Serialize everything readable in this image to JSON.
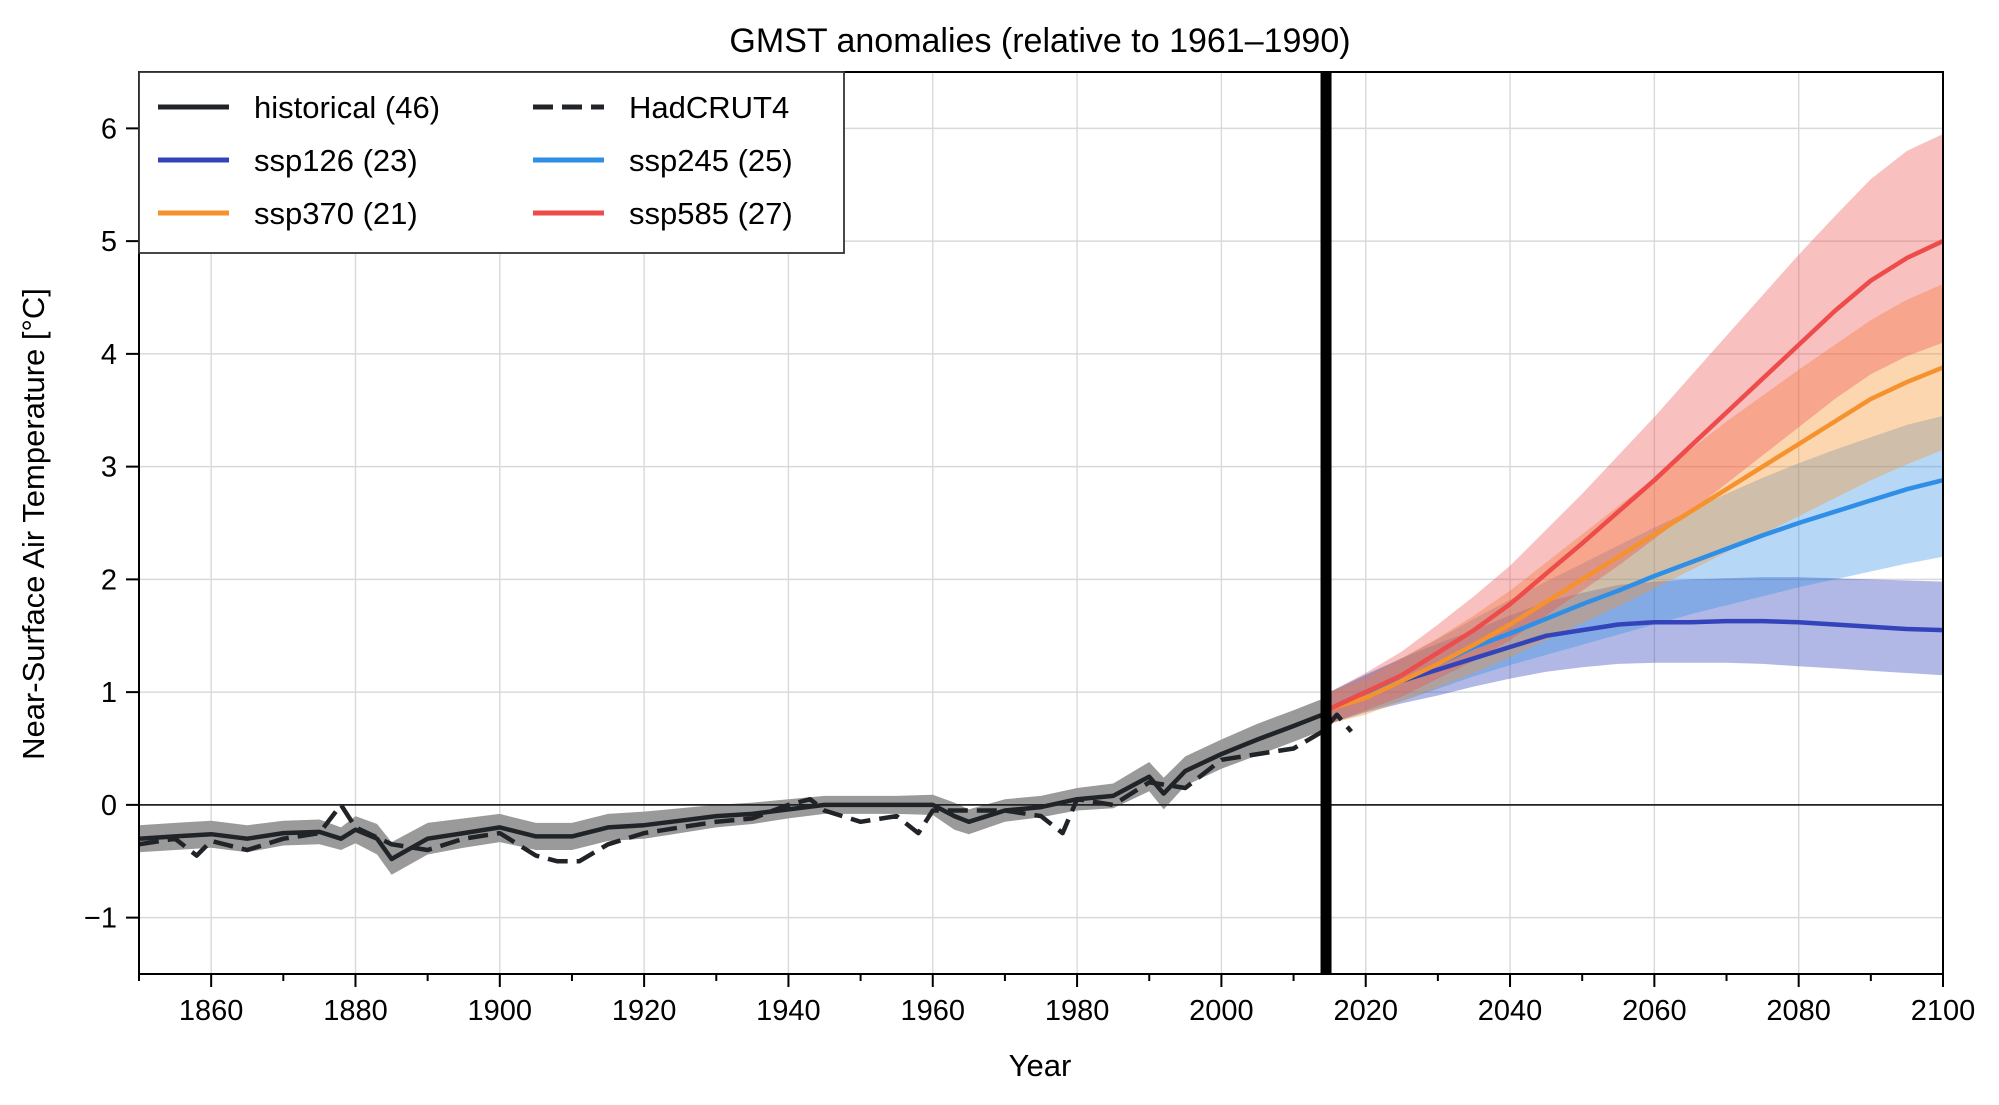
{
  "chart_data": {
    "type": "line",
    "title": "GMST anomalies (relative to 1961–1990)",
    "xlabel": "Year",
    "ylabel": "Near-Surface Air Temperature [°C]",
    "xlim": [
      1850,
      2100
    ],
    "ylim": [
      -1.5,
      6.5
    ],
    "xticks": [
      1860,
      1880,
      1900,
      1920,
      1940,
      1960,
      1980,
      2000,
      2020,
      2040,
      2060,
      2080,
      2100
    ],
    "xtick_labels": [
      "1860",
      "1880",
      "1900",
      "1920",
      "1940",
      "1960",
      "1980",
      "2000",
      "2020",
      "2040",
      "2060",
      "2080",
      "2100"
    ],
    "yticks": [
      -1,
      0,
      1,
      2,
      3,
      4,
      5,
      6
    ],
    "ytick_labels": [
      "−1",
      "0",
      "1",
      "2",
      "3",
      "4",
      "5",
      "6"
    ],
    "grid": true,
    "zero_line": true,
    "divider_year": 2014.5,
    "legend_position": "top-left",
    "legend_columns": 2,
    "series": [
      {
        "key": "historical",
        "name": "historical (46)",
        "color": "#202428",
        "band_color": "#9a9a9a",
        "dash": "solid",
        "x": [
          1850,
          1855,
          1860,
          1865,
          1870,
          1875,
          1878,
          1880,
          1883,
          1885,
          1890,
          1895,
          1900,
          1905,
          1910,
          1915,
          1920,
          1925,
          1930,
          1935,
          1940,
          1945,
          1950,
          1955,
          1960,
          1963,
          1965,
          1970,
          1975,
          1980,
          1985,
          1990,
          1992,
          1995,
          2000,
          2005,
          2010,
          2014
        ],
        "values": [
          -0.3,
          -0.28,
          -0.26,
          -0.3,
          -0.25,
          -0.24,
          -0.3,
          -0.22,
          -0.3,
          -0.48,
          -0.3,
          -0.25,
          -0.2,
          -0.28,
          -0.28,
          -0.2,
          -0.18,
          -0.14,
          -0.1,
          -0.08,
          -0.04,
          0.0,
          0.0,
          0.0,
          0.0,
          -0.1,
          -0.15,
          -0.05,
          -0.02,
          0.05,
          0.08,
          0.25,
          0.1,
          0.3,
          0.45,
          0.58,
          0.7,
          0.8
        ],
        "lower": [
          -0.42,
          -0.4,
          -0.38,
          -0.42,
          -0.36,
          -0.35,
          -0.4,
          -0.34,
          -0.44,
          -0.62,
          -0.44,
          -0.38,
          -0.33,
          -0.4,
          -0.4,
          -0.32,
          -0.3,
          -0.25,
          -0.2,
          -0.17,
          -0.12,
          -0.08,
          -0.08,
          -0.08,
          -0.09,
          -0.22,
          -0.26,
          -0.15,
          -0.11,
          -0.05,
          -0.03,
          0.12,
          -0.04,
          0.17,
          0.32,
          0.44,
          0.56,
          0.66
        ],
        "upper": [
          -0.18,
          -0.16,
          -0.14,
          -0.18,
          -0.14,
          -0.13,
          -0.2,
          -0.1,
          -0.17,
          -0.33,
          -0.16,
          -0.12,
          -0.08,
          -0.16,
          -0.16,
          -0.08,
          -0.06,
          -0.03,
          0.0,
          0.02,
          0.05,
          0.08,
          0.08,
          0.08,
          0.09,
          0.02,
          -0.04,
          0.05,
          0.08,
          0.15,
          0.19,
          0.38,
          0.24,
          0.43,
          0.58,
          0.72,
          0.84,
          0.94
        ]
      },
      {
        "key": "hadcrut4",
        "name": "HadCRUT4",
        "color": "#202428",
        "dash": "dashed",
        "x": [
          1850,
          1855,
          1858,
          1860,
          1865,
          1870,
          1875,
          1878,
          1880,
          1885,
          1890,
          1895,
          1900,
          1905,
          1908,
          1911,
          1915,
          1920,
          1925,
          1930,
          1935,
          1940,
          1943,
          1945,
          1950,
          1955,
          1958,
          1960,
          1965,
          1970,
          1975,
          1978,
          1980,
          1985,
          1990,
          1995,
          2000,
          2005,
          2010,
          2014,
          2016,
          2018
        ],
        "values": [
          -0.35,
          -0.3,
          -0.45,
          -0.32,
          -0.4,
          -0.3,
          -0.25,
          0.0,
          -0.2,
          -0.35,
          -0.4,
          -0.3,
          -0.25,
          -0.45,
          -0.5,
          -0.5,
          -0.35,
          -0.25,
          -0.2,
          -0.15,
          -0.12,
          0.0,
          0.05,
          -0.05,
          -0.15,
          -0.1,
          -0.25,
          -0.05,
          -0.05,
          -0.05,
          -0.1,
          -0.25,
          0.05,
          0.0,
          0.2,
          0.15,
          0.4,
          0.45,
          0.5,
          0.65,
          0.8,
          0.65
        ]
      },
      {
        "key": "ssp126",
        "name": "ssp126 (23)",
        "color": "#3344bb",
        "band_color": "rgba(51,68,187,0.38)",
        "dash": "solid",
        "x": [
          2015,
          2020,
          2025,
          2030,
          2035,
          2040,
          2045,
          2050,
          2055,
          2060,
          2065,
          2070,
          2075,
          2080,
          2085,
          2090,
          2095,
          2100
        ],
        "values": [
          0.85,
          1.0,
          1.1,
          1.2,
          1.3,
          1.4,
          1.5,
          1.55,
          1.6,
          1.62,
          1.62,
          1.63,
          1.63,
          1.62,
          1.6,
          1.58,
          1.56,
          1.55
        ],
        "lower": [
          0.72,
          0.82,
          0.9,
          0.97,
          1.05,
          1.12,
          1.18,
          1.22,
          1.25,
          1.26,
          1.26,
          1.26,
          1.25,
          1.23,
          1.21,
          1.19,
          1.17,
          1.15
        ],
        "upper": [
          1.0,
          1.15,
          1.3,
          1.43,
          1.55,
          1.68,
          1.8,
          1.88,
          1.95,
          1.98,
          2.0,
          2.01,
          2.02,
          2.02,
          2.01,
          2.0,
          1.99,
          1.98
        ]
      },
      {
        "key": "ssp245",
        "name": "ssp245 (25)",
        "color": "#2f8ee6",
        "band_color": "rgba(47,142,230,0.35)",
        "dash": "solid",
        "x": [
          2015,
          2020,
          2025,
          2030,
          2035,
          2040,
          2045,
          2050,
          2055,
          2060,
          2065,
          2070,
          2075,
          2080,
          2085,
          2090,
          2095,
          2100
        ],
        "values": [
          0.85,
          1.0,
          1.1,
          1.25,
          1.4,
          1.52,
          1.65,
          1.78,
          1.9,
          2.03,
          2.15,
          2.27,
          2.39,
          2.5,
          2.6,
          2.7,
          2.8,
          2.88
        ],
        "lower": [
          0.72,
          0.83,
          0.92,
          1.03,
          1.14,
          1.24,
          1.33,
          1.42,
          1.51,
          1.6,
          1.69,
          1.77,
          1.85,
          1.93,
          2.0,
          2.07,
          2.14,
          2.2
        ],
        "upper": [
          1.0,
          1.16,
          1.3,
          1.47,
          1.65,
          1.82,
          1.98,
          2.14,
          2.3,
          2.46,
          2.61,
          2.76,
          2.9,
          3.03,
          3.15,
          3.26,
          3.37,
          3.45
        ]
      },
      {
        "key": "ssp370",
        "name": "ssp370 (21)",
        "color": "#f6922e",
        "band_color": "rgba(246,146,46,0.38)",
        "dash": "solid",
        "x": [
          2015,
          2020,
          2025,
          2030,
          2035,
          2040,
          2045,
          2050,
          2055,
          2060,
          2065,
          2070,
          2075,
          2080,
          2085,
          2090,
          2095,
          2100
        ],
        "values": [
          0.85,
          0.95,
          1.1,
          1.25,
          1.42,
          1.6,
          1.8,
          2.0,
          2.2,
          2.4,
          2.6,
          2.8,
          3.0,
          3.2,
          3.4,
          3.6,
          3.75,
          3.88
        ],
        "lower": [
          0.72,
          0.8,
          0.92,
          1.04,
          1.17,
          1.31,
          1.46,
          1.61,
          1.76,
          1.92,
          2.08,
          2.24,
          2.4,
          2.56,
          2.72,
          2.88,
          3.02,
          3.15
        ],
        "upper": [
          1.0,
          1.12,
          1.3,
          1.48,
          1.68,
          1.9,
          2.15,
          2.4,
          2.65,
          2.9,
          3.15,
          3.4,
          3.63,
          3.86,
          4.08,
          4.3,
          4.48,
          4.62
        ]
      },
      {
        "key": "ssp585",
        "name": "ssp585 (27)",
        "color": "#ee4b4b",
        "band_color": "rgba(238,75,75,0.35)",
        "dash": "solid",
        "x": [
          2015,
          2020,
          2025,
          2030,
          2035,
          2040,
          2045,
          2050,
          2055,
          2060,
          2065,
          2070,
          2075,
          2080,
          2085,
          2090,
          2095,
          2100
        ],
        "values": [
          0.85,
          1.0,
          1.15,
          1.35,
          1.55,
          1.78,
          2.05,
          2.32,
          2.6,
          2.88,
          3.18,
          3.48,
          3.78,
          4.08,
          4.38,
          4.65,
          4.85,
          5.0
        ],
        "lower": [
          0.72,
          0.84,
          0.96,
          1.12,
          1.28,
          1.46,
          1.68,
          1.9,
          2.12,
          2.36,
          2.6,
          2.85,
          3.1,
          3.35,
          3.6,
          3.82,
          3.98,
          4.1
        ],
        "upper": [
          1.0,
          1.17,
          1.36,
          1.6,
          1.85,
          2.12,
          2.44,
          2.76,
          3.1,
          3.44,
          3.8,
          4.16,
          4.52,
          4.88,
          5.22,
          5.55,
          5.8,
          5.95
        ]
      }
    ]
  }
}
